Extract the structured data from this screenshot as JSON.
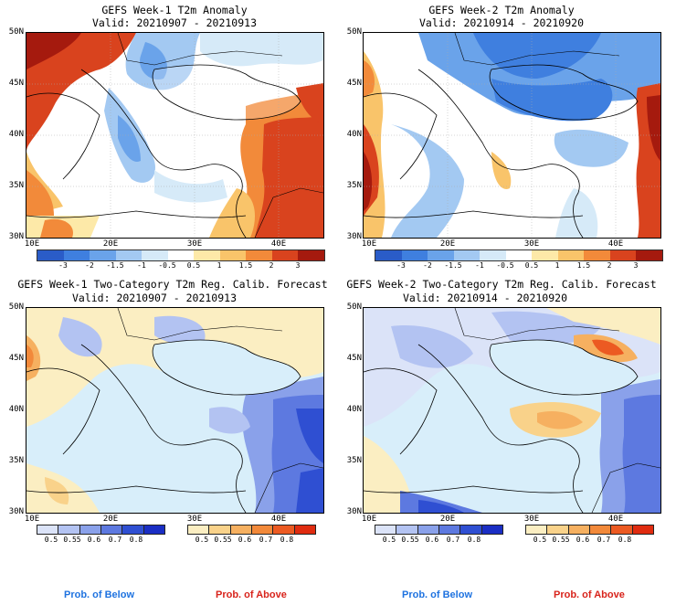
{
  "panels": [
    {
      "title": "GEFS Week-1 T2m Anomaly",
      "valid": "Valid: 20210907 - 20210913"
    },
    {
      "title": "GEFS Week-2 T2m Anomaly",
      "valid": "Valid: 20210914 - 20210920"
    },
    {
      "title": "GEFS Week-1 Two-Category T2m Reg. Calib. Forecast",
      "valid": "Valid: 20210907 - 20210913"
    },
    {
      "title": "GEFS Week-2 Two-Category T2m Reg. Calib. Forecast",
      "valid": "Valid: 20210914 - 20210920"
    }
  ],
  "lat_labels": [
    "50N",
    "45N",
    "40N",
    "35N",
    "30N"
  ],
  "lon_labels": [
    "10E",
    "20E",
    "30E",
    "40E"
  ],
  "anomaly_colorbar": {
    "labels": [
      "-3",
      "-2",
      "-1.5",
      "-1",
      "-0.5",
      "0.5",
      "1",
      "1.5",
      "2",
      "3"
    ],
    "colors": [
      "#2a5cc8",
      "#3f7fdf",
      "#6aa3ea",
      "#a3c9f2",
      "#d6eaf8",
      "#ffffff",
      "#fde9a8",
      "#f9c46a",
      "#f28a3a",
      "#d9431e",
      "#a51a0e"
    ]
  },
  "below_colorbar": {
    "labels": [
      "0.5",
      "0.55",
      "0.6",
      "0.7",
      "0.8"
    ],
    "colors": [
      "#dbe3f8",
      "#b3c3f2",
      "#8aa1ea",
      "#5d79e0",
      "#2f4fd2",
      "#1a2ec4"
    ]
  },
  "above_colorbar": {
    "labels": [
      "0.5",
      "0.55",
      "0.6",
      "0.7",
      "0.8"
    ],
    "colors": [
      "#fbeec2",
      "#f9d28a",
      "#f6b060",
      "#f2893a",
      "#ec5a22",
      "#e02c10"
    ]
  },
  "prob_below_label": "Prob. of Below",
  "prob_above_label": "Prob. of Above",
  "colors": {
    "below_text": "#1f73e0",
    "above_text": "#d8231b",
    "land_light": "#d8eefa"
  }
}
